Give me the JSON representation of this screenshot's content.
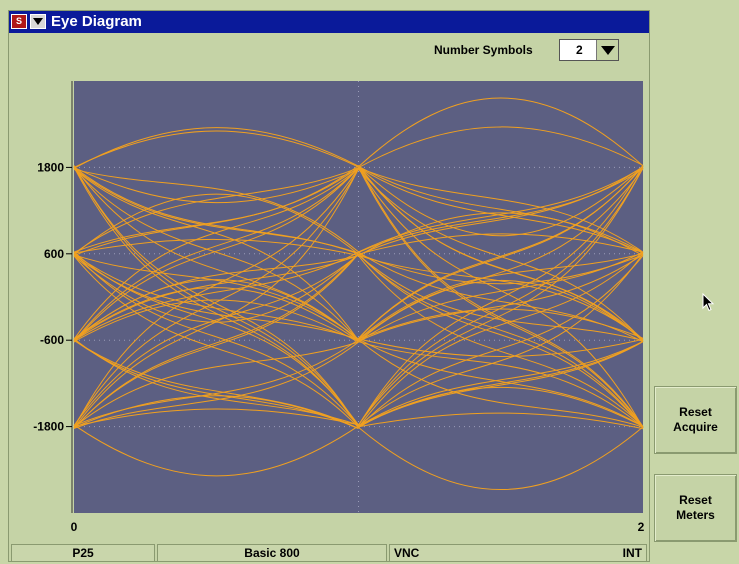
{
  "window": {
    "title": "Eye Diagram"
  },
  "toolbar": {
    "number_symbols_label": "Number Symbols",
    "number_symbols_value": "2"
  },
  "status": {
    "protocol": "P25",
    "system": "Basic 800",
    "mode": "VNC",
    "source": "INT"
  },
  "buttons": {
    "reset_acquire": "Reset\nAcquire",
    "reset_meters": "Reset\nMeters"
  },
  "colors": {
    "plot_bg": "#5c5f82",
    "trace": "#f0a020",
    "panel_bg": "#c5d3a6",
    "titlebar": "#0a1a9a"
  },
  "chart_data": {
    "type": "line",
    "title": "Eye Diagram",
    "x": [
      0,
      1,
      2
    ],
    "x_tick_labels": [
      "0",
      "2"
    ],
    "y_ticks": [
      1800,
      600,
      -600,
      -1800
    ],
    "ylim": [
      -3000,
      3000
    ],
    "xlim": [
      0,
      2
    ],
    "symbol_levels": [
      1800,
      600,
      -600,
      -1800
    ],
    "grid": true
  }
}
